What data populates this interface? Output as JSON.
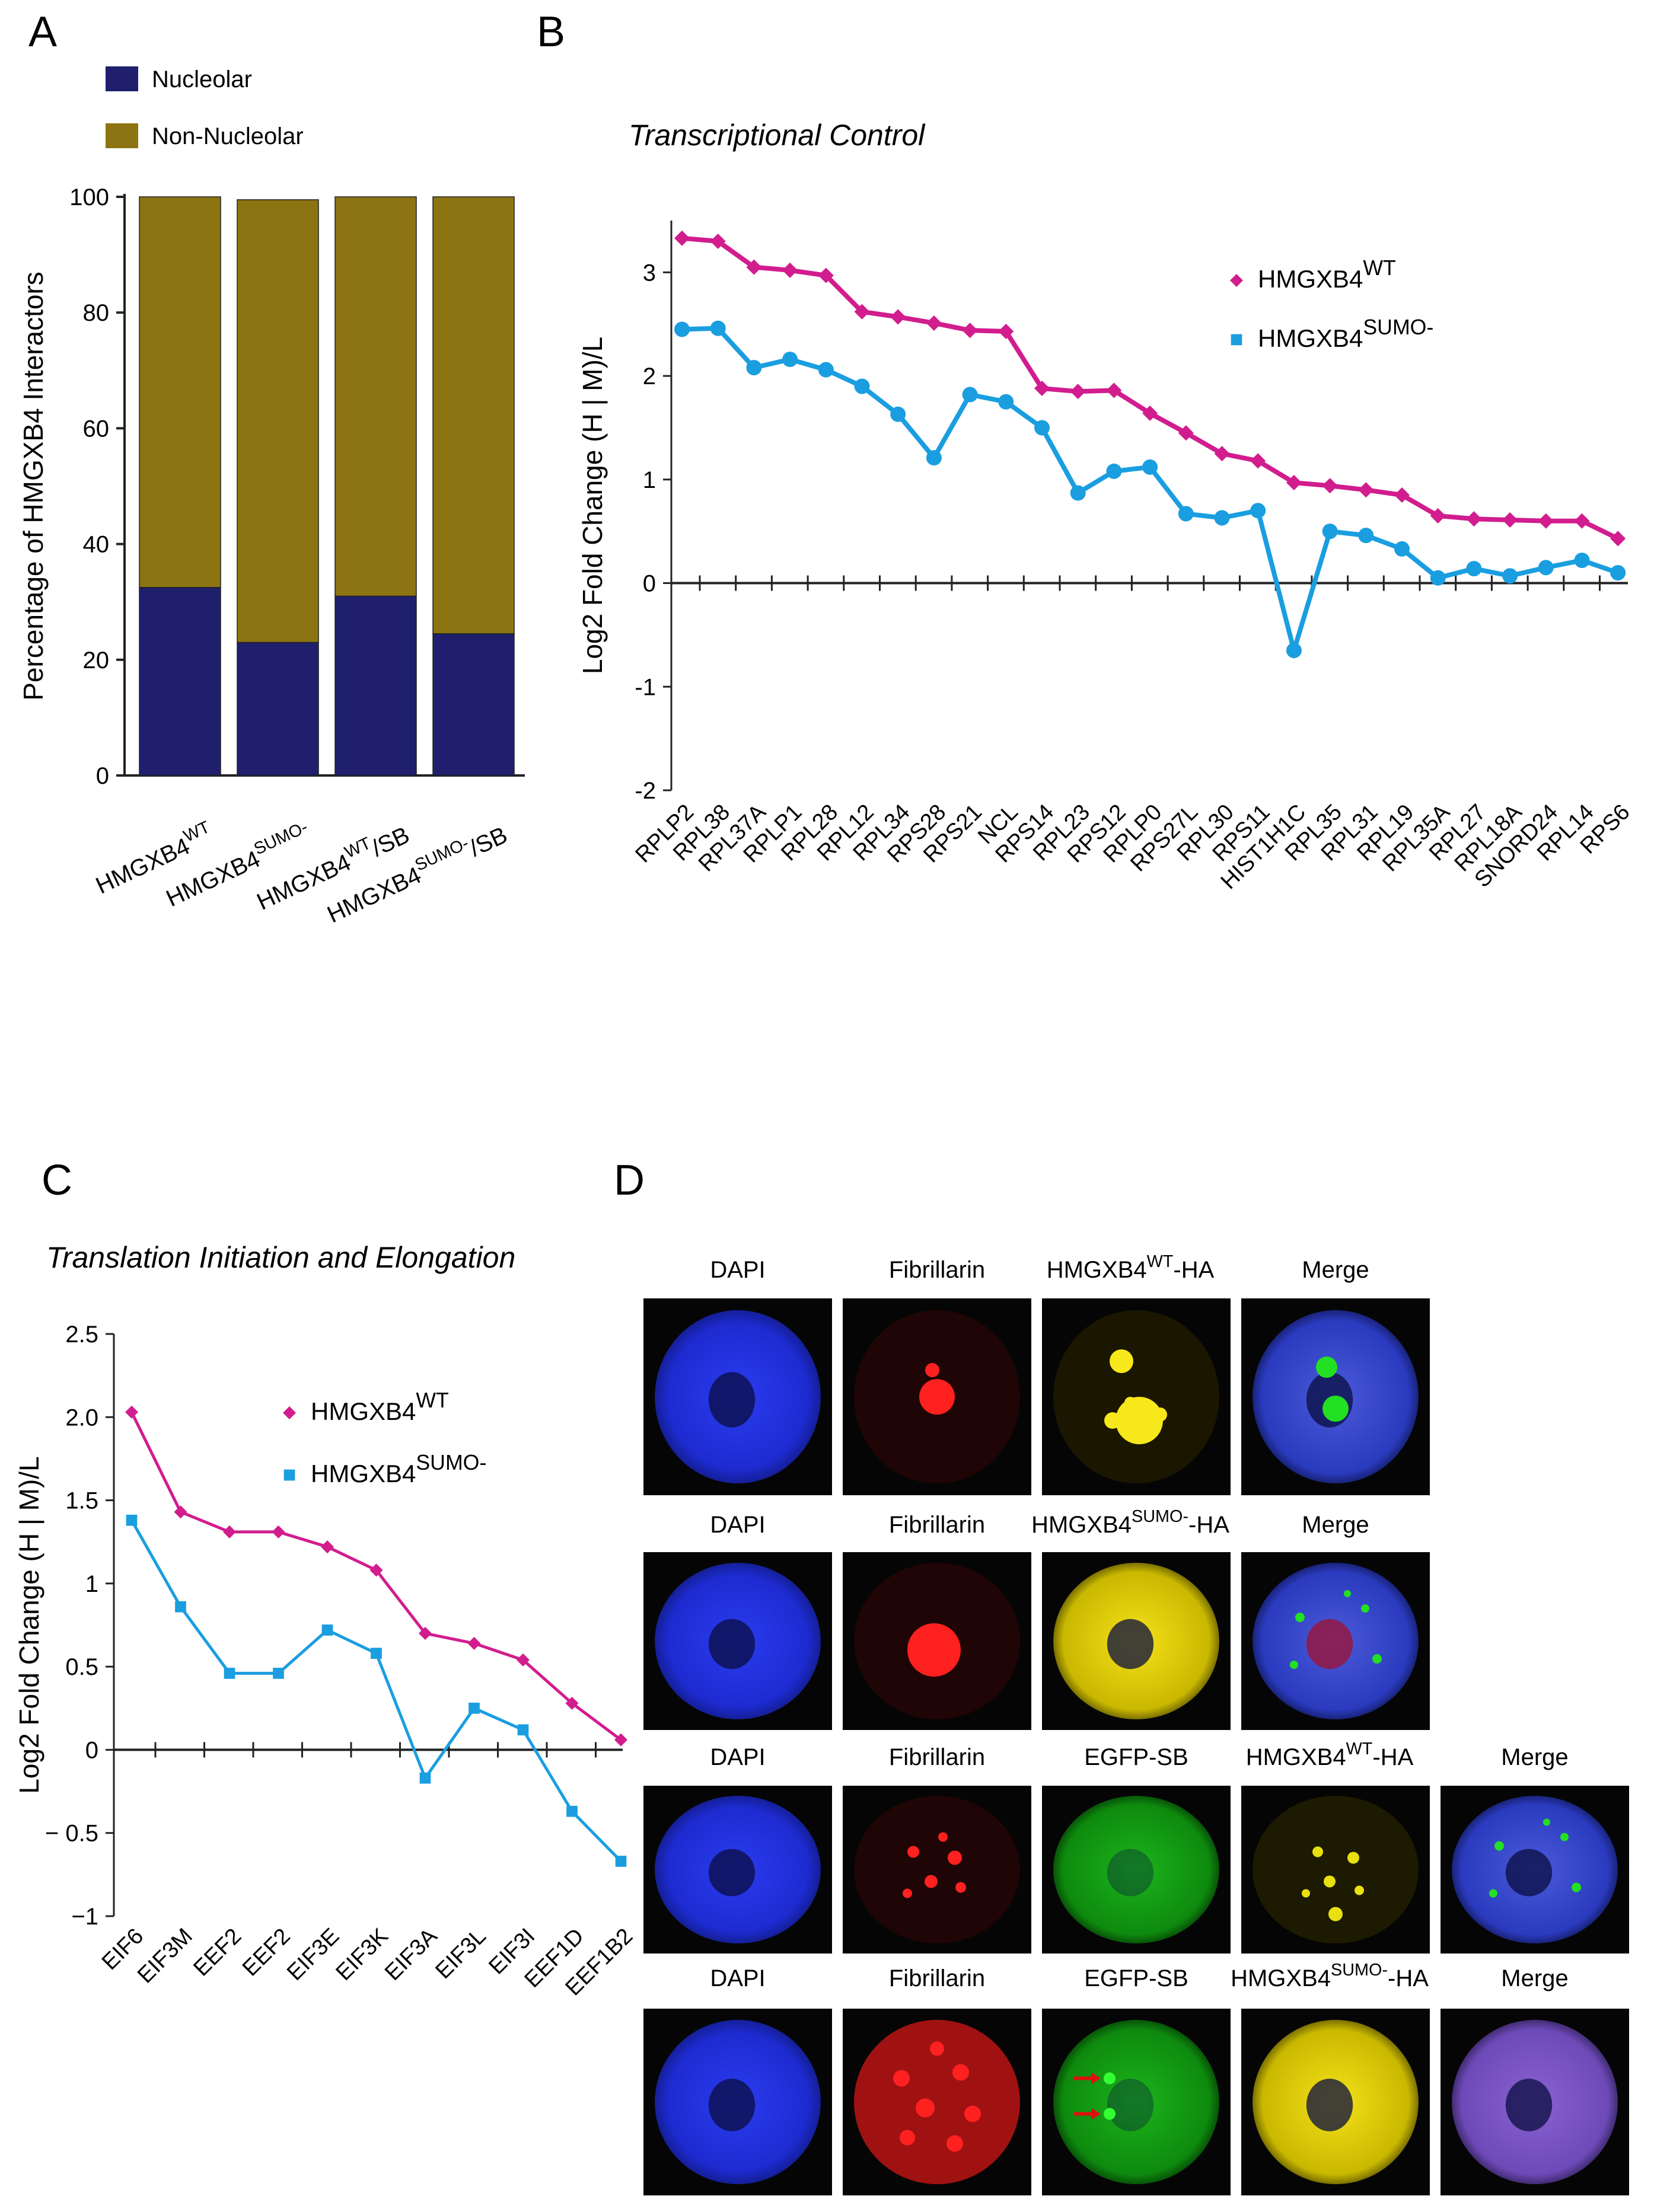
{
  "panels": {
    "A": {
      "letter": "A"
    },
    "B": {
      "letter": "B"
    },
    "C": {
      "letter": "C"
    },
    "D": {
      "letter": "D"
    }
  },
  "colors": {
    "nucleolar": "#1f1f6e",
    "non_nucleolar": "#8c7412",
    "wt": "#d11d8e",
    "sumo": "#1a9ee0",
    "axis": "#222222",
    "red_arrow": "#e01010"
  },
  "chart_data": [
    {
      "panel": "A",
      "type": "bar",
      "stacked": true,
      "ylabel": "Percentage of HMGXB4 Interactors",
      "ylim": [
        0,
        100
      ],
      "yticks": [
        0,
        20,
        40,
        60,
        80,
        100
      ],
      "categories": [
        {
          "base": "HMGXB4",
          "sup": "WT",
          "suffix": ""
        },
        {
          "base": "HMGXB4",
          "sup": "SUMO-",
          "suffix": ""
        },
        {
          "base": "HMGXB4",
          "sup": "WT",
          "suffix": "/SB"
        },
        {
          "base": "HMGXB4",
          "sup": "SUMO-",
          "suffix": "/SB"
        }
      ],
      "series": [
        {
          "name": "Nucleolar",
          "color": "#1f1f6e",
          "values": [
            32.5,
            23,
            31,
            24.5
          ]
        },
        {
          "name": "Non-Nucleolar",
          "color": "#8c7412",
          "values": [
            67.5,
            76.5,
            69,
            75.5
          ]
        }
      ],
      "legend_position": "top-left"
    },
    {
      "panel": "B",
      "type": "line",
      "title": "Transcriptional Control",
      "ylabel": "Log2 Fold Change (H | M)/L",
      "ylim": [
        -2,
        3.5
      ],
      "yticks": [
        -2,
        -1,
        0,
        1,
        2,
        3
      ],
      "categories": [
        "RPLP2",
        "RPL38",
        "RPL37A",
        "RPLP1",
        "RPL28",
        "RPL12",
        "RPL34",
        "RPS28",
        "RPS21",
        "NCL",
        "RPS14",
        "RPL23",
        "RPS12",
        "RPLP0",
        "RPS27L",
        "RPL30",
        "RPS11",
        "HIST1H1C",
        "RPL35",
        "RPL31",
        "RPL19",
        "RPL35A",
        "RPL27",
        "RPL18A",
        "SNORD24",
        "RPL14",
        "RPS6"
      ],
      "series": [
        {
          "name_base": "HMGXB4",
          "name_sup": "WT",
          "color": "#d11d8e",
          "marker": "diamond",
          "values": [
            3.33,
            3.3,
            3.05,
            3.02,
            2.97,
            2.62,
            2.57,
            2.51,
            2.44,
            2.43,
            1.88,
            1.85,
            1.86,
            1.64,
            1.45,
            1.25,
            1.18,
            0.97,
            0.94,
            0.9,
            0.85,
            0.65,
            0.62,
            0.61,
            0.6,
            0.6,
            0.43
          ]
        },
        {
          "name_base": "HMGXB4",
          "name_sup": "SUMO-",
          "color": "#1a9ee0",
          "marker": "circle",
          "values": [
            2.45,
            2.46,
            2.08,
            2.16,
            2.06,
            1.9,
            1.63,
            1.21,
            1.82,
            1.75,
            1.5,
            0.87,
            1.08,
            1.12,
            0.67,
            0.63,
            0.7,
            -0.65,
            0.5,
            0.46,
            0.33,
            0.05,
            0.14,
            0.07,
            0.15,
            0.22,
            0.1
          ]
        }
      ],
      "legend_position": "top-right"
    },
    {
      "panel": "C",
      "type": "line",
      "title": "Translation Initiation and Elongation",
      "ylabel": "Log2 Fold Change (H | M)/L",
      "ylim": [
        -1,
        2.5
      ],
      "yticks": [
        -1,
        -0.5,
        0,
        0.5,
        1,
        1.5,
        2.0,
        2.5
      ],
      "ytick_labels": [
        "−1",
        "− 0.5",
        "0",
        "0.5",
        "1",
        "1.5",
        "2.0",
        "2.5"
      ],
      "categories": [
        "EIF6",
        "EIF3M",
        "EEF2",
        "EEF2",
        "EIF3E",
        "EIF3K",
        "EIF3A",
        "EIF3L",
        "EIF3I",
        "EEF1D",
        "EEF1B2"
      ],
      "series": [
        {
          "name_base": "HMGXB4",
          "name_sup": "WT",
          "color": "#d11d8e",
          "marker": "diamond",
          "values": [
            2.03,
            1.43,
            1.31,
            1.31,
            1.22,
            1.08,
            0.7,
            0.64,
            0.54,
            0.28,
            0.06
          ]
        },
        {
          "name_base": "HMGXB4",
          "name_sup": "SUMO-",
          "color": "#1a9ee0",
          "marker": "square",
          "values": [
            1.38,
            0.86,
            0.46,
            0.46,
            0.72,
            0.58,
            -0.17,
            0.25,
            0.12,
            -0.37,
            -0.67
          ]
        }
      ],
      "legend_position": "top-right"
    }
  ],
  "panel_d": {
    "rows": [
      {
        "labels": [
          {
            "text": "DAPI"
          },
          {
            "text": "Fibrillarin"
          },
          {
            "base": "HMGXB4",
            "sup": "WT",
            "suffix": "-HA"
          },
          {
            "text": "Merge"
          }
        ]
      },
      {
        "labels": [
          {
            "text": "DAPI"
          },
          {
            "text": "Fibrillarin"
          },
          {
            "base": "HMGXB4",
            "sup": "SUMO-",
            "suffix": "-HA"
          },
          {
            "text": "Merge"
          }
        ]
      },
      {
        "labels": [
          {
            "text": "DAPI"
          },
          {
            "text": "Fibrillarin"
          },
          {
            "text": "EGFP-SB"
          },
          {
            "base": "HMGXB4",
            "sup": "WT",
            "suffix": "-HA"
          },
          {
            "text": "Merge"
          }
        ]
      },
      {
        "labels": [
          {
            "text": "DAPI"
          },
          {
            "text": "Fibrillarin"
          },
          {
            "text": "EGFP-SB"
          },
          {
            "base": "HMGXB4",
            "sup": "SUMO-",
            "suffix": "-HA"
          },
          {
            "text": "Merge"
          }
        ]
      }
    ]
  }
}
